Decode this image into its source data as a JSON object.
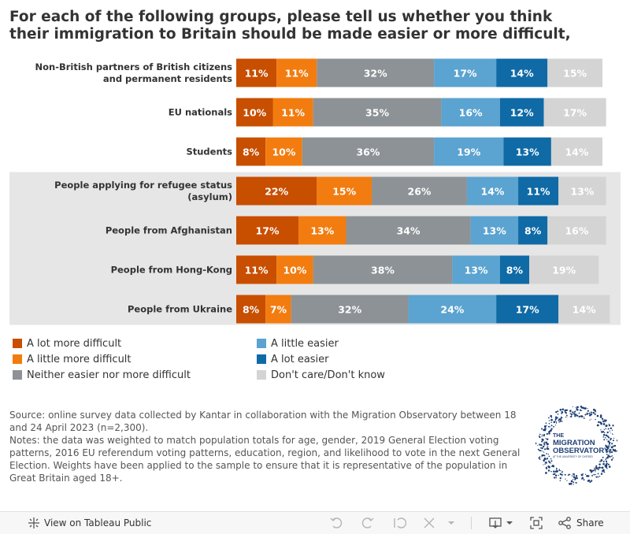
{
  "title": {
    "line1": "For each of the following groups, please tell us whether you think",
    "line2": "their immigration to Britain should be made easier or more difficult,"
  },
  "colors": {
    "a_lot_more_difficult": "#c84e00",
    "a_little_more_difficult": "#f27c0f",
    "neither": "#8c9296",
    "a_little_easier": "#5ba3d0",
    "a_lot_easier": "#0f6aa6",
    "dont_know": "#d4d4d4",
    "highlight_band": "#e6e6e6"
  },
  "chart_data": {
    "type": "bar",
    "orientation": "horizontal",
    "stacked": true,
    "normalized_to": 100,
    "categories": [
      "Non-British partners of British citizens and permanent residents",
      "EU nationals",
      "Students",
      "People applying for refugee status (asylum)",
      "People from Afghanistan",
      "People from Hong-Kong",
      "People from Ukraine"
    ],
    "category_lines": [
      [
        "Non-British partners of British citizens",
        "and permanent residents"
      ],
      [
        "EU nationals"
      ],
      [
        "Students"
      ],
      [
        "People applying for refugee status",
        "(asylum)"
      ],
      [
        "People from Afghanistan"
      ],
      [
        "People from Hong-Kong"
      ],
      [
        "People from Ukraine"
      ]
    ],
    "highlighted_categories": [
      "People applying for refugee status (asylum)",
      "People from Afghanistan",
      "People from Hong-Kong",
      "People from Ukraine"
    ],
    "series": [
      {
        "name": "A lot more difficult",
        "color_key": "a_lot_more_difficult",
        "values": [
          11,
          10,
          8,
          22,
          17,
          11,
          8
        ]
      },
      {
        "name": "A little more difficult",
        "color_key": "a_little_more_difficult",
        "values": [
          11,
          11,
          10,
          15,
          13,
          10,
          7
        ]
      },
      {
        "name": "Neither easier nor more difficult",
        "color_key": "neither",
        "values": [
          32,
          35,
          36,
          26,
          34,
          38,
          32
        ]
      },
      {
        "name": "A little easier",
        "color_key": "a_little_easier",
        "values": [
          17,
          16,
          19,
          14,
          13,
          13,
          24
        ]
      },
      {
        "name": "A lot easier",
        "color_key": "a_lot_easier",
        "values": [
          14,
          12,
          13,
          11,
          8,
          8,
          17
        ]
      },
      {
        "name": "Don't care/Don't know",
        "color_key": "dont_know",
        "values": [
          15,
          17,
          14,
          13,
          16,
          19,
          14
        ]
      }
    ],
    "value_suffix": "%"
  },
  "legend": [
    {
      "label": "A lot more difficult",
      "color_key": "a_lot_more_difficult"
    },
    {
      "label": "A little more difficult",
      "color_key": "a_little_more_difficult"
    },
    {
      "label": "Neither easier nor more difficult",
      "color_key": "neither"
    },
    {
      "label": "A little easier",
      "color_key": "a_little_easier"
    },
    {
      "label": "A lot easier",
      "color_key": "a_lot_easier"
    },
    {
      "label": "Don't care/Don't know",
      "color_key": "dont_know"
    }
  ],
  "notes": {
    "source": "Source: online survey data collected by Kantar in collaboration with the Migration Observatory between 18 and 24 April 2023 (n=2,300).",
    "notes": "Notes: the data was weighted to match population totals for age, gender, 2019 General Election voting patterns, 2016 EU referendum voting patterns, education, region, and likelihood to vote in the next General Election. Weights have been applied to the sample to ensure that it is representative of the population in Great Britain aged 18+."
  },
  "logo": {
    "line1": "THE",
    "line2": "MIGRATION",
    "line3": "OBSERVATORY",
    "line4": "AT THE UNIVERSITY OF OXFORD",
    "color": "#1d3f73"
  },
  "toolbar": {
    "view_label": "View on Tableau Public",
    "share_label": "Share",
    "icons": [
      "tableau-icon",
      "undo-icon",
      "redo-icon",
      "revert-icon",
      "pause-icon",
      "download-icon",
      "fullscreen-icon",
      "share-icon"
    ]
  }
}
